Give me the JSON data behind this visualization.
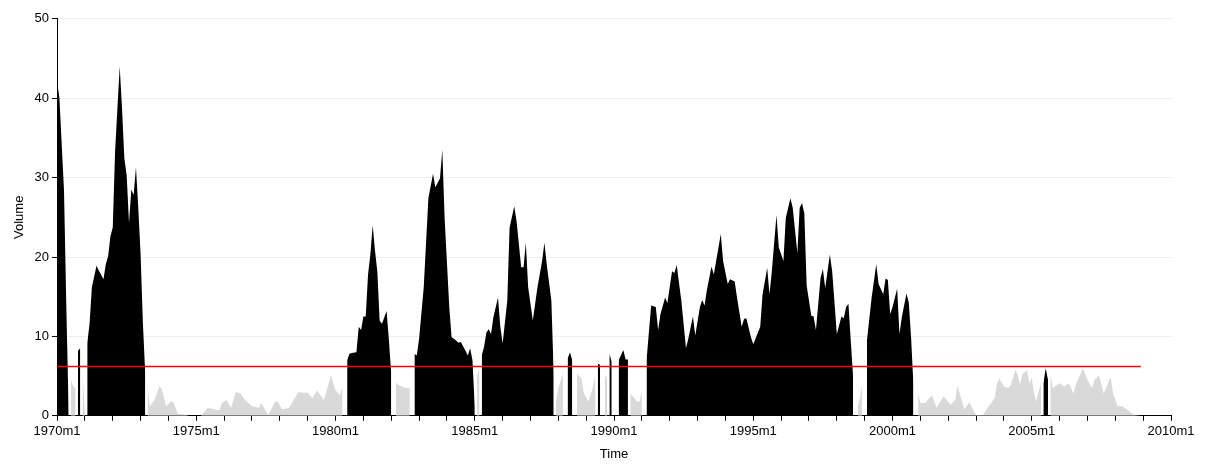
{
  "chart_data": {
    "type": "area",
    "xlabel": "Time",
    "ylabel": "Volume",
    "xlim": [
      "1970-01",
      "2010-01"
    ],
    "xticks": [
      {
        "value": "1970-01",
        "label": "1970m1"
      },
      {
        "value": "1971-01",
        "label": null
      },
      {
        "value": "1972-01",
        "label": null
      },
      {
        "value": "1973-01",
        "label": null
      },
      {
        "value": "1974-01",
        "label": null
      },
      {
        "value": "1975-01",
        "label": "1975m1"
      },
      {
        "value": "1976-01",
        "label": null
      },
      {
        "value": "1977-01",
        "label": null
      },
      {
        "value": "1978-01",
        "label": null
      },
      {
        "value": "1979-01",
        "label": null
      },
      {
        "value": "1980-01",
        "label": "1980m1"
      },
      {
        "value": "1981-01",
        "label": null
      },
      {
        "value": "1982-01",
        "label": null
      },
      {
        "value": "1983-01",
        "label": null
      },
      {
        "value": "1984-01",
        "label": null
      },
      {
        "value": "1985-01",
        "label": "1985m1"
      },
      {
        "value": "1986-01",
        "label": null
      },
      {
        "value": "1987-01",
        "label": null
      },
      {
        "value": "1988-01",
        "label": null
      },
      {
        "value": "1989-01",
        "label": null
      },
      {
        "value": "1990-01",
        "label": "1990m1"
      },
      {
        "value": "1991-01",
        "label": null
      },
      {
        "value": "1992-01",
        "label": null
      },
      {
        "value": "1993-01",
        "label": null
      },
      {
        "value": "1994-01",
        "label": null
      },
      {
        "value": "1995-01",
        "label": "1995m1"
      },
      {
        "value": "1996-01",
        "label": null
      },
      {
        "value": "1997-01",
        "label": null
      },
      {
        "value": "1998-01",
        "label": null
      },
      {
        "value": "1999-01",
        "label": null
      },
      {
        "value": "2000-01",
        "label": "2000m1"
      },
      {
        "value": "2001-01",
        "label": null
      },
      {
        "value": "2002-01",
        "label": null
      },
      {
        "value": "2003-01",
        "label": null
      },
      {
        "value": "2004-01",
        "label": null
      },
      {
        "value": "2005-01",
        "label": "2005m1"
      },
      {
        "value": "2006-01",
        "label": null
      },
      {
        "value": "2007-01",
        "label": null
      },
      {
        "value": "2008-01",
        "label": null
      },
      {
        "value": "2009-01",
        "label": null
      },
      {
        "value": "2010-01",
        "label": "2010m1"
      }
    ],
    "ylim": [
      0,
      50
    ],
    "yticks": [
      0,
      10,
      20,
      30,
      40,
      50
    ],
    "grid": "y",
    "ref_lines": [
      {
        "axis": "y",
        "value": 6.2,
        "color": "#ff0000"
      }
    ],
    "series": [
      {
        "color": "#d9d9d9",
        "x": [
          "1970-07",
          "1970-08",
          "1970-09",
          "1970-10",
          "1970-12",
          "1971-01",
          "1972-01",
          "1973-04",
          "1973-05",
          "1973-07",
          "1973-09",
          "1973-10",
          "1973-12",
          "1974-02",
          "1974-03",
          "1974-05",
          "1974-07",
          "1974-10",
          "1975-03",
          "1975-06",
          "1975-09",
          "1975-11",
          "1975-12",
          "1976-02",
          "1976-04",
          "1976-06",
          "1976-08",
          "1976-10",
          "1977-01",
          "1977-04",
          "1977-05",
          "1977-08",
          "1977-11",
          "1977-12",
          "1978-02",
          "1978-05",
          "1978-09",
          "1978-11",
          "1979-01",
          "1979-03",
          "1979-05",
          "1979-08",
          "1979-11",
          "1980-01",
          "1980-03",
          "1980-04",
          "1980-08",
          "1982-03",
          "1982-04",
          "1982-07",
          "1982-09",
          "1983-01",
          "1985-02",
          "1985-03",
          "1986-01",
          "1987-12",
          "1988-01",
          "1988-03",
          "1988-04",
          "1988-09",
          "1988-11",
          "1988-12",
          "1989-02",
          "1989-04",
          "1989-05",
          "1989-06",
          "1989-09",
          "1989-10",
          "1989-11",
          "1990-08",
          "1990-11",
          "1990-12",
          "1991-01",
          "1995-01",
          "1998-10",
          "1998-11",
          "1998-12",
          "2000-01",
          "2000-12",
          "2001-01",
          "2001-03",
          "2001-06",
          "2001-08",
          "2001-11",
          "2002-02",
          "2002-04",
          "2002-05",
          "2002-08",
          "2002-10",
          "2003-01",
          "2003-04",
          "2003-06",
          "2003-09",
          "2003-10",
          "2003-11",
          "2004-01",
          "2004-03",
          "2004-04",
          "2004-06",
          "2004-07",
          "2004-08",
          "2004-09",
          "2004-11",
          "2004-12",
          "2005-01",
          "2005-02",
          "2005-03",
          "2005-04",
          "2005-05",
          "2005-07",
          "2005-09",
          "2005-10",
          "2006-01",
          "2006-03",
          "2006-05",
          "2006-07",
          "2006-08",
          "2006-11",
          "2007-01",
          "2007-03",
          "2007-04",
          "2007-06",
          "2007-08",
          "2007-09",
          "2007-11",
          "2007-12",
          "2008-02",
          "2008-04",
          "2008-06",
          "2008-09",
          "2008-12"
        ],
        "values": [
          4.5,
          3.7,
          3.5,
          null,
          5.3,
          0.2,
          null,
          3.7,
          1.2,
          2.0,
          3.7,
          3.5,
          1.2,
          1.8,
          1.8,
          0.3,
          0.2,
          0,
          0,
          1.0,
          0.8,
          0.7,
          1.6,
          2.0,
          1.0,
          3.0,
          2.8,
          2.0,
          1.2,
          1.0,
          1.6,
          0.1,
          1.8,
          1.8,
          0.8,
          1.0,
          3.0,
          2.9,
          2.9,
          2.2,
          3.2,
          2.0,
          5.1,
          3.2,
          2.6,
          3.9,
          null,
          4.3,
          3.9,
          3.5,
          3.5,
          null,
          5.1,
          6.0,
          null,
          1.8,
          3.5,
          5.3,
          null,
          5.3,
          4.7,
          2.8,
          1.8,
          3.7,
          5.3,
          null,
          5.3,
          4.5,
          null,
          2.8,
          1.8,
          1.8,
          3.2,
          null,
          1.2,
          2.3,
          4.1,
          null,
          2.8,
          1.6,
          1.6,
          2.6,
          1.0,
          2.5,
          1.4,
          2.0,
          3.8,
          0.8,
          1.7,
          0.1,
          0.1,
          1.0,
          2.2,
          4.1,
          4.7,
          3.7,
          3.5,
          3.9,
          5.8,
          5.1,
          3.9,
          5.3,
          5.7,
          4.1,
          4.8,
          2.8,
          1.8,
          3.2,
          4.1,
          null,
          5.5,
          3.5,
          4.1,
          3.7,
          4.1,
          2.8,
          3.9,
          6.0,
          4.5,
          3.5,
          4.5,
          5.1,
          2.8,
          3.5,
          4.9,
          2.8,
          1.2,
          1.2,
          0.8,
          0.1,
          0
        ]
      },
      {
        "color": "#000000",
        "x": [
          "1970-01",
          "1970-02",
          "1970-04",
          "1970-05",
          "1970-06",
          "1970-07",
          "1970-10",
          "1970-11",
          "1970-12",
          "1971-02",
          "1971-03",
          "1971-04",
          "1971-06",
          "1971-07",
          "1971-09",
          "1971-10",
          "1971-11",
          "1971-12",
          "1972-01",
          "1972-02",
          "1972-03",
          "1972-04",
          "1972-05",
          "1972-06",
          "1972-07",
          "1972-08",
          "1972-09",
          "1972-10",
          "1972-11",
          "1972-12",
          "1973-01",
          "1973-02",
          "1973-03",
          "1976-01",
          "1980-06",
          "1980-07",
          "1980-08",
          "1980-10",
          "1980-11",
          "1980-12",
          "1981-01",
          "1981-02",
          "1981-03",
          "1981-04",
          "1981-05",
          "1981-06",
          "1981-07",
          "1981-08",
          "1981-09",
          "1981-11",
          "1981-12",
          "1982-01",
          "1982-06",
          "1982-11",
          "1982-12",
          "1983-01",
          "1983-03",
          "1983-05",
          "1983-07",
          "1983-08",
          "1983-10",
          "1983-11",
          "1983-12",
          "1984-02",
          "1984-03",
          "1984-04",
          "1984-06",
          "1984-07",
          "1984-09",
          "1984-10",
          "1984-11",
          "1984-12",
          "1985-01",
          "1985-02",
          "1985-04",
          "1985-05",
          "1985-06",
          "1985-07",
          "1985-08",
          "1985-09",
          "1985-11",
          "1985-12",
          "1986-01",
          "1986-03",
          "1986-04",
          "1986-06",
          "1986-07",
          "1986-09",
          "1986-10",
          "1986-11",
          "1986-12",
          "1987-02",
          "1987-04",
          "1987-06",
          "1987-07",
          "1987-08",
          "1987-10",
          "1987-11",
          "1988-02",
          "1988-05",
          "1988-06",
          "1988-07",
          "1988-10",
          "1989-06",
          "1989-07",
          "1989-09",
          "1989-11",
          "1989-12",
          "1990-01",
          "1990-03",
          "1990-05",
          "1990-06",
          "1990-07",
          "1990-10",
          "1991-03",
          "1991-05",
          "1991-07",
          "1991-08",
          "1991-09",
          "1991-11",
          "1991-12",
          "1992-02",
          "1992-03",
          "1992-04",
          "1992-06",
          "1992-08",
          "1992-09",
          "1992-11",
          "1992-12",
          "1993-02",
          "1993-03",
          "1993-04",
          "1993-05",
          "1993-07",
          "1993-08",
          "1993-09",
          "1993-11",
          "1993-12",
          "1994-02",
          "1994-03",
          "1994-05",
          "1994-06",
          "1994-08",
          "1994-09",
          "1994-10",
          "1994-12",
          "1995-01",
          "1995-04",
          "1995-05",
          "1995-07",
          "1995-08",
          "1995-09",
          "1995-11",
          "1995-12",
          "1996-02",
          "1996-03",
          "1996-05",
          "1996-06",
          "1996-08",
          "1996-09",
          "1996-10",
          "1996-11",
          "1996-12",
          "1997-02",
          "1997-03",
          "1997-04",
          "1997-06",
          "1997-07",
          "1997-08",
          "1997-10",
          "1997-11",
          "1998-01",
          "1998-03",
          "1998-04",
          "1998-05",
          "1998-06",
          "1998-07",
          "1998-08",
          "1998-09",
          "1999-02",
          "1999-04",
          "1999-06",
          "1999-07",
          "1999-09",
          "1999-10",
          "1999-11",
          "1999-12",
          "2000-01",
          "2000-03",
          "2000-04",
          "2000-05",
          "2000-07",
          "2000-08",
          "2000-09",
          "2000-10",
          "2003-01",
          "2005-06",
          "2005-07",
          "2005-08"
        ],
        "values": [
          42.1,
          40.1,
          28.3,
          13.7,
          0.5,
          null,
          8.2,
          8.5,
          null,
          9.1,
          11.6,
          16.2,
          18.9,
          18.3,
          17.2,
          19.1,
          20.1,
          22.6,
          23.7,
          33.3,
          38.7,
          44.0,
          38.7,
          32.4,
          30.3,
          24.3,
          28.5,
          27.8,
          31.3,
          26.2,
          20.3,
          11.6,
          5.3,
          null,
          7.0,
          7.8,
          7.9,
          8.0,
          11.2,
          10.8,
          12.5,
          12.5,
          17.8,
          20.3,
          24.0,
          20.8,
          18.2,
          12.0,
          11.6,
          13.2,
          9.5,
          5.3,
          null,
          7.8,
          7.6,
          9.7,
          16.2,
          27.4,
          30.5,
          28.8,
          29.9,
          33.5,
          24.9,
          13.7,
          9.9,
          9.7,
          9.2,
          9.3,
          8.2,
          7.6,
          8.5,
          7.0,
          1.0,
          null,
          7.6,
          8.7,
          10.5,
          10.9,
          10.3,
          12.4,
          14.9,
          11.2,
          9.1,
          14.5,
          23.7,
          26.4,
          24.5,
          18.7,
          18.7,
          21.8,
          16.2,
          12.0,
          16.2,
          19.5,
          21.8,
          19.1,
          14.5,
          5.3,
          null,
          7.2,
          8.0,
          7.0,
          null,
          6.6,
          6.4,
          null,
          7.8,
          6.8,
          null,
          7.0,
          8.3,
          7.1,
          7.1,
          null,
          7.0,
          13.9,
          13.7,
          10.8,
          12.8,
          14.9,
          14.2,
          18.2,
          18.0,
          19.0,
          14.5,
          8.5,
          9.7,
          12.5,
          10.1,
          13.7,
          14.6,
          13.9,
          15.8,
          18.8,
          17.8,
          19.5,
          22.9,
          19.5,
          16.6,
          17.2,
          16.9,
          14.9,
          11.2,
          12.2,
          12.3,
          9.9,
          9.0,
          11.2,
          15.3,
          18.6,
          15.3,
          18.2,
          25.3,
          21.2,
          19.5,
          24.9,
          27.4,
          26.2,
          20.5,
          26.2,
          26.8,
          25.5,
          16.4,
          12.6,
          12.5,
          10.8,
          17.4,
          18.5,
          16.1,
          20.3,
          18.2,
          10.3,
          12.5,
          12.3,
          13.7,
          14.1,
          9.5,
          5.0,
          null,
          9.5,
          14.9,
          19.1,
          16.6,
          15.3,
          17.3,
          17.1,
          12.8,
          13.7,
          16.0,
          10.3,
          12.4,
          15.4,
          14.3,
          9.9,
          4.0,
          null,
          4.0,
          6.0,
          4.5
        ]
      }
    ]
  }
}
